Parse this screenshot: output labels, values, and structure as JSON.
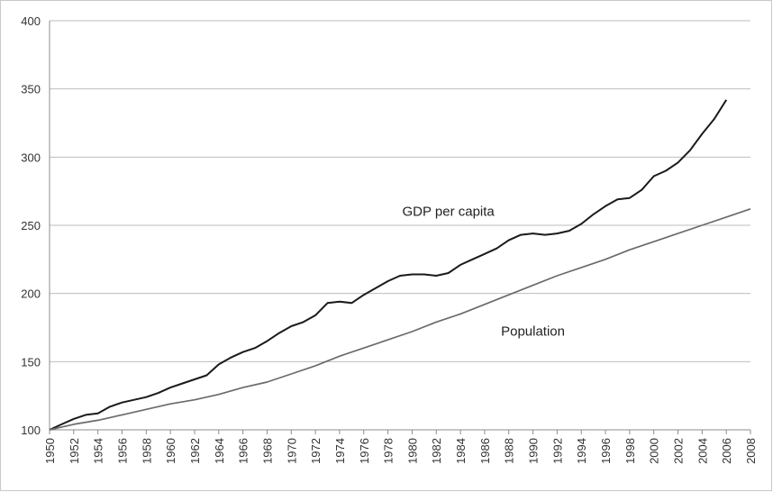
{
  "chart_data": {
    "type": "line",
    "title": "",
    "xlabel": "",
    "ylabel": "",
    "ylim": [
      100,
      400
    ],
    "yticks": [
      100,
      150,
      200,
      250,
      300,
      350,
      400
    ],
    "xlim": [
      1950,
      2008
    ],
    "xticks": [
      1950,
      1952,
      1954,
      1956,
      1958,
      1960,
      1962,
      1964,
      1966,
      1968,
      1970,
      1972,
      1974,
      1976,
      1978,
      1980,
      1982,
      1984,
      1986,
      1988,
      1990,
      1992,
      1994,
      1996,
      1998,
      2000,
      2002,
      2004,
      2006,
      2008
    ],
    "grid": "horizontal",
    "legend": "none",
    "colors": {
      "gdp": "#1a1a1a",
      "population": "#6b6b6b",
      "grid": "#bdbdbd",
      "axis": "#8c8c8c"
    },
    "series": [
      {
        "name": "GDP per capita",
        "label_year": 1983,
        "label_value": 257,
        "x": [
          1950,
          1951,
          1952,
          1953,
          1954,
          1955,
          1956,
          1957,
          1958,
          1959,
          1960,
          1961,
          1962,
          1963,
          1964,
          1965,
          1966,
          1967,
          1968,
          1969,
          1970,
          1971,
          1972,
          1973,
          1974,
          1975,
          1976,
          1977,
          1978,
          1979,
          1980,
          1981,
          1982,
          1983,
          1984,
          1985,
          1986,
          1987,
          1988,
          1989,
          1990,
          1991,
          1992,
          1993,
          1994,
          1995,
          1996,
          1997,
          1998,
          1999,
          2000,
          2001,
          2002,
          2003,
          2004,
          2005,
          2006
        ],
        "values": [
          100,
          104,
          108,
          111,
          112,
          117,
          120,
          122,
          124,
          127,
          131,
          134,
          137,
          140,
          148,
          153,
          157,
          160,
          165,
          171,
          176,
          179,
          184,
          193,
          194,
          193,
          199,
          204,
          209,
          213,
          214,
          214,
          213,
          215,
          221,
          225,
          229,
          233,
          239,
          243,
          244,
          243,
          244,
          246,
          251,
          258,
          264,
          269,
          270,
          276,
          286,
          290,
          296,
          305,
          317,
          328,
          342
        ]
      },
      {
        "name": "Population",
        "label_year": 1990,
        "label_value": 169,
        "x": [
          1950,
          1952,
          1954,
          1956,
          1958,
          1960,
          1962,
          1964,
          1966,
          1968,
          1970,
          1972,
          1974,
          1976,
          1978,
          1980,
          1982,
          1984,
          1986,
          1988,
          1990,
          1992,
          1994,
          1996,
          1998,
          2000,
          2002,
          2004,
          2006,
          2008
        ],
        "values": [
          100,
          104,
          107,
          111,
          115,
          119,
          122,
          126,
          131,
          135,
          141,
          147,
          154,
          160,
          166,
          172,
          179,
          185,
          192,
          199,
          206,
          213,
          219,
          225,
          232,
          238,
          244,
          250,
          256,
          262
        ]
      }
    ]
  }
}
